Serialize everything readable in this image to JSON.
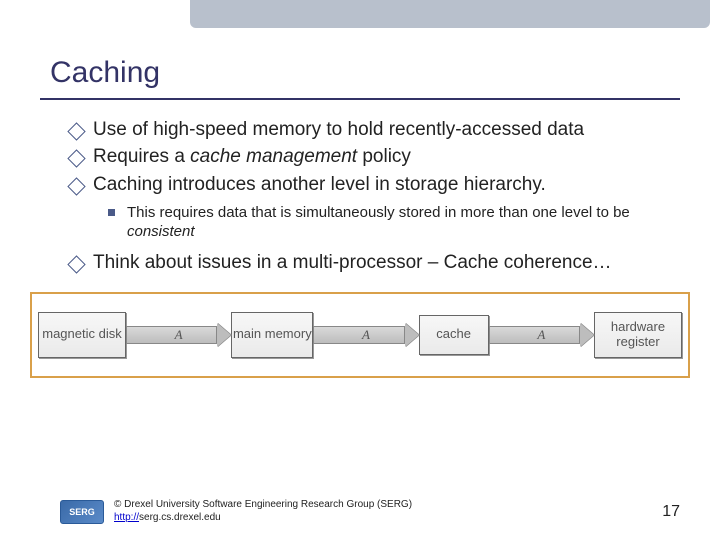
{
  "title": "Caching",
  "bullets": [
    {
      "text": "Use of high-speed memory to hold recently-accessed data"
    },
    {
      "prefix": "Requires a ",
      "italic": "cache management",
      "suffix": " policy"
    },
    {
      "text": "Caching introduces another level in storage hierarchy."
    }
  ],
  "subbullet": {
    "prefix": "This requires data that is simultaneously stored in more than one level to be ",
    "italic": "consistent"
  },
  "bullet4": "Think about issues in a multi-processor – Cache coherence…",
  "diagram": {
    "border_color": "#d9a04a",
    "boxes": [
      "magnetic disk",
      "main memory",
      "cache",
      "hardware register"
    ],
    "arrow_label": "A"
  },
  "footer": {
    "logo_text": "SERG",
    "copyright": "© Drexel University Software Engineering Research Group (SERG)",
    "url_prefix": "http://",
    "url_rest": "serg.cs.drexel.edu"
  },
  "page_number": "17",
  "colors": {
    "title": "#333366",
    "topbar": "#b8c0cc",
    "box_bg": "#eaeaea",
    "arrow_fill": "#bdbdbd"
  }
}
